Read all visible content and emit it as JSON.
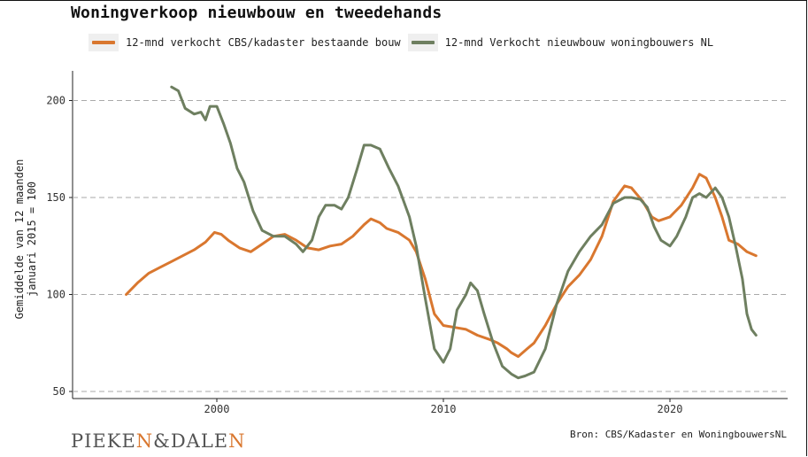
{
  "logo_text": "PIEKEN&DALEN",
  "source": "Bron: CBS/Kadaster en WoningbouwersNL",
  "chart_data": {
    "type": "line",
    "title": "Woningverkoop nieuwbouw en tweedehands",
    "xlabel": "",
    "ylabel": "Gemiddelde van 12 maanden januari 2015 = 100",
    "xlim": [
      1993.5,
      2024.7
    ],
    "ylim": [
      50,
      215
    ],
    "x_ticks": [
      2000,
      2010,
      2020
    ],
    "y_ticks": [
      50,
      100,
      150,
      200
    ],
    "grid": "horizontal dashed",
    "legend_position": "top",
    "series": [
      {
        "name": "12-mnd verkocht CBS/kadaster bestaande bouw",
        "color": "#d9772f",
        "points": [
          [
            1996.0,
            100
          ],
          [
            1996.5,
            106
          ],
          [
            1997.0,
            111
          ],
          [
            1997.5,
            114
          ],
          [
            1998.0,
            117
          ],
          [
            1998.5,
            120
          ],
          [
            1999.0,
            123
          ],
          [
            1999.5,
            127
          ],
          [
            1999.9,
            132
          ],
          [
            2000.2,
            131
          ],
          [
            2000.5,
            128
          ],
          [
            2001.0,
            124
          ],
          [
            2001.5,
            122
          ],
          [
            2002.0,
            126
          ],
          [
            2002.5,
            130
          ],
          [
            2003.0,
            131
          ],
          [
            2003.5,
            128
          ],
          [
            2004.0,
            124
          ],
          [
            2004.5,
            123
          ],
          [
            2005.0,
            125
          ],
          [
            2005.5,
            126
          ],
          [
            2006.0,
            130
          ],
          [
            2006.5,
            136
          ],
          [
            2006.8,
            139
          ],
          [
            2007.2,
            137
          ],
          [
            2007.5,
            134
          ],
          [
            2008.0,
            132
          ],
          [
            2008.5,
            128
          ],
          [
            2008.8,
            122
          ],
          [
            2009.2,
            108
          ],
          [
            2009.6,
            90
          ],
          [
            2010.0,
            84
          ],
          [
            2010.5,
            83
          ],
          [
            2011.0,
            82
          ],
          [
            2011.5,
            79
          ],
          [
            2012.0,
            77
          ],
          [
            2012.4,
            75
          ],
          [
            2012.8,
            72
          ],
          [
            2013.0,
            70
          ],
          [
            2013.3,
            68
          ],
          [
            2013.7,
            72
          ],
          [
            2014.0,
            75
          ],
          [
            2014.5,
            84
          ],
          [
            2015.0,
            95
          ],
          [
            2015.5,
            104
          ],
          [
            2016.0,
            110
          ],
          [
            2016.5,
            118
          ],
          [
            2017.0,
            130
          ],
          [
            2017.5,
            148
          ],
          [
            2018.0,
            156
          ],
          [
            2018.3,
            155
          ],
          [
            2018.8,
            148
          ],
          [
            2019.2,
            140
          ],
          [
            2019.5,
            138
          ],
          [
            2020.0,
            140
          ],
          [
            2020.5,
            146
          ],
          [
            2021.0,
            155
          ],
          [
            2021.3,
            162
          ],
          [
            2021.6,
            160
          ],
          [
            2022.0,
            150
          ],
          [
            2022.3,
            140
          ],
          [
            2022.6,
            128
          ],
          [
            2023.0,
            126
          ],
          [
            2023.4,
            122
          ],
          [
            2023.8,
            120
          ]
        ]
      },
      {
        "name": "12-mnd Verkocht nieuwbouw woningbouwers NL",
        "color": "#6e7f60",
        "points": [
          [
            1998.0,
            207
          ],
          [
            1998.3,
            205
          ],
          [
            1998.6,
            196
          ],
          [
            1999.0,
            193
          ],
          [
            1999.3,
            194
          ],
          [
            1999.5,
            190
          ],
          [
            1999.7,
            197
          ],
          [
            2000.0,
            197
          ],
          [
            2000.3,
            188
          ],
          [
            2000.6,
            178
          ],
          [
            2000.9,
            165
          ],
          [
            2001.2,
            158
          ],
          [
            2001.6,
            143
          ],
          [
            2002.0,
            133
          ],
          [
            2002.5,
            130
          ],
          [
            2003.0,
            130
          ],
          [
            2003.5,
            126
          ],
          [
            2003.8,
            122
          ],
          [
            2004.2,
            128
          ],
          [
            2004.5,
            140
          ],
          [
            2004.8,
            146
          ],
          [
            2005.2,
            146
          ],
          [
            2005.5,
            144
          ],
          [
            2005.8,
            150
          ],
          [
            2006.2,
            165
          ],
          [
            2006.5,
            177
          ],
          [
            2006.8,
            177
          ],
          [
            2007.2,
            175
          ],
          [
            2007.6,
            165
          ],
          [
            2008.0,
            156
          ],
          [
            2008.5,
            140
          ],
          [
            2008.8,
            125
          ],
          [
            2009.2,
            98
          ],
          [
            2009.6,
            72
          ],
          [
            2010.0,
            65
          ],
          [
            2010.3,
            72
          ],
          [
            2010.6,
            92
          ],
          [
            2011.0,
            100
          ],
          [
            2011.2,
            106
          ],
          [
            2011.5,
            102
          ],
          [
            2011.8,
            90
          ],
          [
            2012.2,
            75
          ],
          [
            2012.6,
            63
          ],
          [
            2013.0,
            59
          ],
          [
            2013.3,
            57
          ],
          [
            2013.6,
            58
          ],
          [
            2014.0,
            60
          ],
          [
            2014.5,
            72
          ],
          [
            2015.0,
            95
          ],
          [
            2015.5,
            112
          ],
          [
            2016.0,
            122
          ],
          [
            2016.5,
            130
          ],
          [
            2017.0,
            136
          ],
          [
            2017.5,
            147
          ],
          [
            2018.0,
            150
          ],
          [
            2018.3,
            150
          ],
          [
            2018.7,
            149
          ],
          [
            2019.0,
            145
          ],
          [
            2019.3,
            135
          ],
          [
            2019.6,
            128
          ],
          [
            2020.0,
            125
          ],
          [
            2020.3,
            130
          ],
          [
            2020.7,
            140
          ],
          [
            2021.0,
            150
          ],
          [
            2021.3,
            152
          ],
          [
            2021.6,
            150
          ],
          [
            2022.0,
            155
          ],
          [
            2022.3,
            150
          ],
          [
            2022.6,
            140
          ],
          [
            2022.9,
            125
          ],
          [
            2023.2,
            108
          ],
          [
            2023.4,
            90
          ],
          [
            2023.6,
            82
          ],
          [
            2023.8,
            79
          ]
        ]
      }
    ]
  }
}
